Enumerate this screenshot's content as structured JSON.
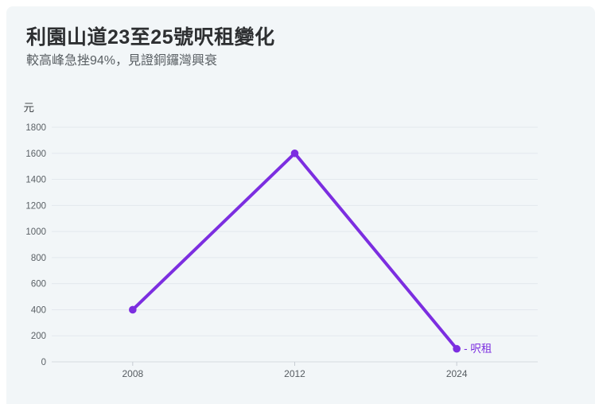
{
  "page": {
    "background": "#ffffff",
    "card_background": "#f2f6f8"
  },
  "header": {
    "title": "利園山道23至25號呎租變化",
    "subtitle": "較高峰急挫94%，見證銅鑼灣興衰"
  },
  "chart_data": {
    "type": "line",
    "title": "利園山道23至25號呎租變化",
    "subtitle": "較高峰急挫94%，見證銅鑼灣興衰",
    "ylabel": "元",
    "xlabel": "",
    "categories": [
      "2008",
      "2012",
      "2024"
    ],
    "series": [
      {
        "name": "呎租",
        "values": [
          400,
          1600,
          100
        ],
        "color": "#7c2ee0"
      }
    ],
    "ylim": [
      0,
      1800
    ],
    "ytick_step": 200,
    "grid": true,
    "legend_position": "end-of-line",
    "legend_prefix": "-"
  },
  "colors": {
    "accent": "#7c2ee0",
    "title_text": "#2d2f31",
    "subtitle_text": "#595f63",
    "tick_text": "#5b6166",
    "gridline": "#e3e8ed",
    "axis_line": "#d6dce1",
    "tick_mark": "#c7cdd3"
  }
}
